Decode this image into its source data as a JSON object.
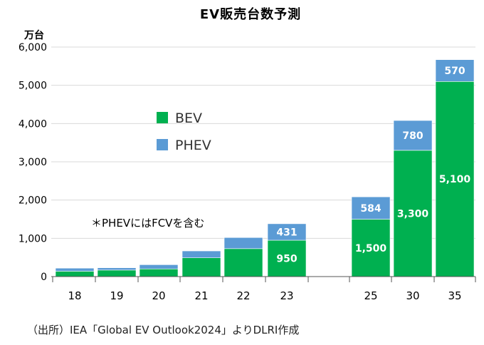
{
  "chart_data": {
    "type": "bar",
    "stacked": true,
    "title": "EV販売台数予測",
    "unit_label": "万台",
    "categories": [
      "18",
      "19",
      "20",
      "21",
      "22",
      "23",
      "25",
      "30",
      "35"
    ],
    "series": [
      {
        "name": "BEV",
        "color": "#00b050",
        "values": [
          140,
          170,
          200,
          490,
          730,
          950,
          1500,
          3300,
          5100
        ],
        "labels": [
          "",
          "",
          "",
          "",
          "",
          "950",
          "1,500",
          "3,300",
          "5,100"
        ]
      },
      {
        "name": "PHEV",
        "color": "#5b9bd5",
        "values": [
          80,
          60,
          110,
          180,
          290,
          431,
          584,
          780,
          570
        ],
        "labels": [
          "",
          "",
          "",
          "",
          "",
          "431",
          "584",
          "780",
          "570"
        ]
      }
    ],
    "ylim": [
      0,
      6000
    ],
    "yticks": [
      0,
      1000,
      2000,
      3000,
      4000,
      5000,
      6000
    ],
    "ytick_labels": [
      "0",
      "1,000",
      "2,000",
      "3,000",
      "4,000",
      "5,000",
      "6,000"
    ],
    "grid": true,
    "legend_position": "center-left",
    "annotation": "＊PHEVにはFCVを含む"
  },
  "source": "（出所）IEA「Global EV Outlook2024」よりDLRI作成"
}
